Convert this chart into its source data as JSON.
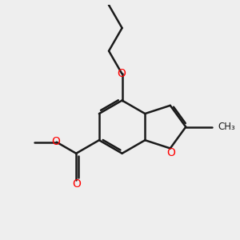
{
  "bg_color": "#eeeeee",
  "bond_color": "#1a1a1a",
  "oxygen_color": "#ff0000",
  "bond_width": 1.8,
  "figsize": [
    3.0,
    3.0
  ],
  "dpi": 100,
  "xlim": [
    0,
    10
  ],
  "ylim": [
    0,
    10
  ]
}
